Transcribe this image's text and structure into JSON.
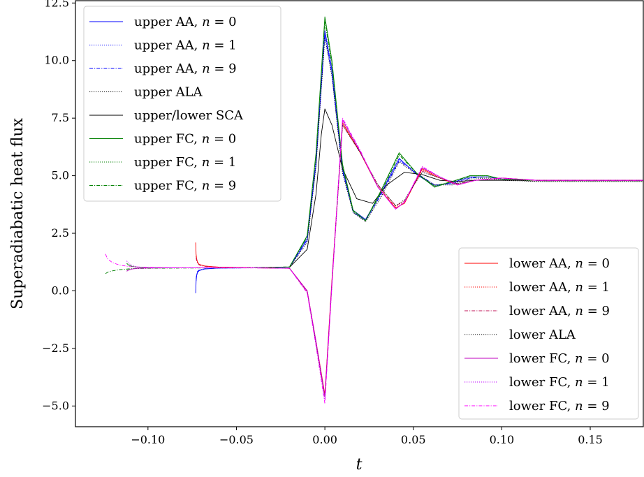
{
  "chart_data": {
    "type": "line",
    "xlabel": "t",
    "ylabel": "Superadiabatic heat flux",
    "xlim": [
      -0.141,
      0.18
    ],
    "ylim": [
      -5.9,
      12.6
    ],
    "xticks": [
      -0.1,
      -0.05,
      0.0,
      0.05,
      0.1,
      0.15
    ],
    "xtick_labels": [
      "−0.10",
      "−0.05",
      "0.00",
      "0.05",
      "0.10",
      "0.15"
    ],
    "yticks": [
      -5.0,
      -2.5,
      0.0,
      2.5,
      5.0,
      7.5,
      10.0,
      12.5
    ],
    "ytick_labels": [
      "−5.0",
      "−2.5",
      "0.0",
      "2.5",
      "5.0",
      "7.5",
      "10.0",
      "12.5"
    ],
    "grid": false,
    "legends": [
      {
        "placement": "upper left",
        "entries": [
          "upper AA, n = 0",
          "upper AA, n = 1",
          "upper AA, n = 9",
          "upper ALA",
          "upper/lower SCA",
          "upper FC, n = 0",
          "upper FC, n = 1",
          "upper FC, n = 9"
        ]
      },
      {
        "placement": "lower right",
        "entries": [
          "lower AA, n = 0",
          "lower AA, n = 1",
          "lower AA, n = 9",
          "lower ALA",
          "lower FC, n = 0",
          "lower FC, n = 1",
          "lower FC, n = 9"
        ]
      }
    ],
    "series": [
      {
        "name": "upper AA, n = 0",
        "legend": 0,
        "color": "#0000ff",
        "dash": "solid",
        "x": [
          -0.073,
          -0.0728,
          -0.0725,
          -0.072,
          -0.071,
          -0.068,
          -0.06,
          -0.04,
          -0.02,
          -0.01,
          -0.005,
          0.0,
          0.004,
          0.01,
          0.016,
          0.023,
          0.032,
          0.042,
          0.052,
          0.062,
          0.072,
          0.082,
          0.092,
          0.1,
          0.12,
          0.15,
          0.18
        ],
        "y": [
          -0.1,
          0.4,
          0.65,
          0.8,
          0.88,
          0.95,
          0.99,
          1.0,
          1.03,
          2.2,
          5.5,
          11.3,
          9.6,
          5.3,
          3.5,
          3.1,
          4.3,
          5.75,
          5.05,
          4.55,
          4.7,
          4.95,
          4.95,
          4.85,
          4.8,
          4.8,
          4.8
        ]
      },
      {
        "name": "upper AA, n = 1",
        "legend": 0,
        "color": "#0000ff",
        "dash": "dotted",
        "x": [
          -0.0728,
          -0.0725,
          -0.072,
          -0.071,
          -0.068,
          -0.06,
          -0.04,
          -0.02,
          -0.01,
          -0.005,
          0.0,
          0.004,
          0.01,
          0.016,
          0.023,
          0.032,
          0.042,
          0.052,
          0.062,
          0.072,
          0.082,
          0.092,
          0.1,
          0.12,
          0.15,
          0.18
        ],
        "y": [
          0.45,
          0.7,
          0.82,
          0.9,
          0.96,
          0.99,
          1.0,
          1.03,
          2.25,
          5.6,
          11.2,
          9.5,
          5.25,
          3.45,
          3.05,
          4.25,
          5.7,
          5.1,
          4.6,
          4.65,
          4.9,
          4.95,
          4.85,
          4.8,
          4.8,
          4.8
        ]
      },
      {
        "name": "upper AA, n = 9",
        "legend": 0,
        "color": "#0000ff",
        "dash": "dashdot",
        "x": [
          -0.0728,
          -0.0725,
          -0.072,
          -0.071,
          -0.068,
          -0.06,
          -0.04,
          -0.02,
          -0.01,
          -0.005,
          0.0,
          0.004,
          0.01,
          0.016,
          0.023,
          0.032,
          0.042,
          0.052,
          0.062,
          0.072,
          0.082,
          0.092,
          0.1,
          0.12,
          0.15,
          0.18
        ],
        "y": [
          0.5,
          0.72,
          0.84,
          0.91,
          0.96,
          0.99,
          1.0,
          1.03,
          2.3,
          5.6,
          11.1,
          9.4,
          5.2,
          3.4,
          3.05,
          4.2,
          5.65,
          5.1,
          4.6,
          4.65,
          4.9,
          4.95,
          4.85,
          4.8,
          4.8,
          4.8
        ]
      },
      {
        "name": "upper ALA",
        "legend": 0,
        "color": "#000000",
        "dash": "dotted",
        "x": [
          -0.02,
          -0.01,
          -0.005,
          0.0,
          0.004,
          0.01,
          0.016,
          0.023,
          0.032,
          0.042,
          0.052,
          0.062,
          0.072,
          0.082,
          0.092,
          0.1,
          0.12,
          0.15,
          0.18
        ],
        "y": [
          1.02,
          2.1,
          5.4,
          11.0,
          9.3,
          5.1,
          3.4,
          3.0,
          4.1,
          5.6,
          5.05,
          4.6,
          4.6,
          4.85,
          4.9,
          4.8,
          4.75,
          4.75,
          4.75
        ]
      },
      {
        "name": "upper/lower SCA",
        "legend": 0,
        "color": "#000000",
        "dash": "solid",
        "x": [
          -0.02,
          -0.01,
          -0.005,
          -0.002,
          0.0,
          0.004,
          0.01,
          0.018,
          0.027,
          0.035,
          0.045,
          0.055,
          0.065,
          0.075,
          0.085,
          0.1,
          0.12,
          0.15,
          0.18
        ],
        "y": [
          1.02,
          1.8,
          4.2,
          6.8,
          7.9,
          7.2,
          5.3,
          4.0,
          3.8,
          4.6,
          5.15,
          5.05,
          4.8,
          4.75,
          4.8,
          4.8,
          4.8,
          4.8,
          4.8
        ]
      },
      {
        "name": "upper FC, n = 0",
        "legend": 0,
        "color": "#008000",
        "dash": "solid",
        "x": [
          -0.112,
          -0.111,
          -0.109,
          -0.106,
          -0.1,
          -0.09,
          -0.07,
          -0.04,
          -0.02,
          -0.01,
          -0.005,
          0.0,
          0.004,
          0.01,
          0.016,
          0.023,
          0.032,
          0.042,
          0.052,
          0.062,
          0.072,
          0.082,
          0.092,
          0.1,
          0.12,
          0.15,
          0.18
        ],
        "y": [
          1.2,
          1.12,
          1.06,
          1.03,
          1.01,
          1.0,
          1.0,
          1.0,
          1.04,
          2.4,
          6.0,
          11.9,
          10.0,
          5.5,
          3.5,
          3.05,
          4.4,
          6.0,
          5.1,
          4.5,
          4.75,
          5.0,
          5.0,
          4.85,
          4.8,
          4.8,
          4.8
        ]
      },
      {
        "name": "upper FC, n = 1",
        "legend": 0,
        "color": "#008000",
        "dash": "dotted",
        "x": [
          -0.112,
          -0.111,
          -0.109,
          -0.106,
          -0.1,
          -0.09,
          -0.07,
          -0.04,
          -0.02,
          -0.01,
          -0.005,
          0.0,
          0.004,
          0.01,
          0.016,
          0.023,
          0.032,
          0.042,
          0.052,
          0.062,
          0.072,
          0.082,
          0.092,
          0.1,
          0.12,
          0.15,
          0.18
        ],
        "y": [
          0.9,
          0.93,
          0.96,
          0.98,
          0.99,
          1.0,
          1.0,
          1.0,
          1.04,
          2.35,
          5.9,
          11.8,
          9.9,
          5.45,
          3.45,
          3.05,
          4.35,
          5.95,
          5.1,
          4.55,
          4.75,
          5.0,
          5.0,
          4.85,
          4.8,
          4.8,
          4.8
        ]
      },
      {
        "name": "upper FC, n = 9",
        "legend": 0,
        "color": "#008000",
        "dash": "dashdot",
        "x": [
          -0.124,
          -0.123,
          -0.12,
          -0.116,
          -0.11,
          -0.1,
          -0.08,
          -0.05,
          -0.02,
          -0.01,
          -0.005,
          0.0,
          0.004,
          0.01,
          0.016,
          0.023,
          0.032,
          0.042,
          0.052,
          0.062,
          0.072,
          0.082,
          0.092,
          0.1,
          0.12,
          0.15,
          0.18
        ],
        "y": [
          0.75,
          0.8,
          0.87,
          0.92,
          0.96,
          0.98,
          0.99,
          1.0,
          1.04,
          2.35,
          5.9,
          11.7,
          9.8,
          5.4,
          3.45,
          3.05,
          4.3,
          5.9,
          5.1,
          4.55,
          4.75,
          4.95,
          4.95,
          4.85,
          4.8,
          4.8,
          4.8
        ]
      },
      {
        "name": "lower AA, n = 0",
        "legend": 1,
        "color": "#ff0000",
        "dash": "solid",
        "x": [
          -0.073,
          -0.0728,
          -0.0725,
          -0.072,
          -0.071,
          -0.068,
          -0.06,
          -0.04,
          -0.02,
          -0.01,
          -0.005,
          0.0,
          0.004,
          0.01,
          0.02,
          0.03,
          0.04,
          0.045,
          0.055,
          0.065,
          0.075,
          0.085,
          0.1,
          0.12,
          0.15,
          0.18
        ],
        "y": [
          2.1,
          1.6,
          1.4,
          1.25,
          1.15,
          1.08,
          1.03,
          1.0,
          0.98,
          0.0,
          -2.2,
          -4.5,
          0.5,
          7.3,
          6.0,
          4.5,
          3.6,
          3.8,
          5.3,
          4.9,
          4.6,
          4.8,
          4.9,
          4.8,
          4.8,
          4.8
        ]
      },
      {
        "name": "lower AA, n = 1",
        "legend": 1,
        "color": "#ff0000",
        "dash": "dotted",
        "x": [
          -0.0728,
          -0.0725,
          -0.072,
          -0.071,
          -0.068,
          -0.06,
          -0.04,
          -0.02,
          -0.01,
          -0.005,
          0.0,
          0.004,
          0.01,
          0.02,
          0.03,
          0.04,
          0.045,
          0.055,
          0.065,
          0.075,
          0.085,
          0.1,
          0.12,
          0.15,
          0.18
        ],
        "y": [
          1.5,
          1.35,
          1.22,
          1.13,
          1.07,
          1.03,
          1.0,
          0.98,
          0.0,
          -2.25,
          -4.55,
          0.4,
          7.25,
          6.0,
          4.55,
          3.65,
          3.85,
          5.25,
          4.9,
          4.6,
          4.8,
          4.9,
          4.8,
          4.8,
          4.8
        ]
      },
      {
        "name": "lower AA, n = 9",
        "legend": 1,
        "color": "#c2185b",
        "dash": "dashdot",
        "x": [
          -0.0728,
          -0.0725,
          -0.072,
          -0.071,
          -0.068,
          -0.06,
          -0.04,
          -0.02,
          -0.01,
          -0.005,
          0.0,
          0.004,
          0.01,
          0.02,
          0.03,
          0.04,
          0.045,
          0.055,
          0.065,
          0.075,
          0.085,
          0.1,
          0.12,
          0.15,
          0.18
        ],
        "y": [
          1.45,
          1.3,
          1.2,
          1.12,
          1.06,
          1.03,
          1.0,
          0.98,
          -0.05,
          -2.3,
          -4.6,
          0.3,
          7.2,
          6.0,
          4.6,
          3.7,
          3.9,
          5.2,
          4.9,
          4.65,
          4.8,
          4.9,
          4.8,
          4.8,
          4.8
        ]
      },
      {
        "name": "lower ALA",
        "legend": 1,
        "color": "#000000",
        "dash": "dotted",
        "x": [
          -0.02,
          -0.01,
          -0.005,
          0.0,
          0.004,
          0.01,
          0.02,
          0.03,
          0.04,
          0.045,
          0.055,
          0.065,
          0.075,
          0.085,
          0.1,
          0.12,
          0.15,
          0.18
        ],
        "y": [
          0.98,
          0.0,
          -2.3,
          -4.6,
          0.3,
          7.2,
          6.0,
          4.6,
          3.7,
          3.95,
          5.15,
          4.9,
          4.65,
          4.8,
          4.85,
          4.75,
          4.75,
          4.75
        ]
      },
      {
        "name": "lower FC, n = 0",
        "legend": 1,
        "color": "#bf00bf",
        "dash": "solid",
        "x": [
          -0.112,
          -0.111,
          -0.109,
          -0.106,
          -0.1,
          -0.09,
          -0.07,
          -0.04,
          -0.02,
          -0.01,
          -0.005,
          0.0,
          0.004,
          0.01,
          0.02,
          0.03,
          0.04,
          0.045,
          0.055,
          0.065,
          0.075,
          0.085,
          0.1,
          0.12,
          0.15,
          0.18
        ],
        "y": [
          0.85,
          0.9,
          0.95,
          0.98,
          0.99,
          1.0,
          1.0,
          1.0,
          0.98,
          0.0,
          -2.2,
          -4.6,
          0.4,
          7.4,
          6.05,
          4.5,
          3.55,
          3.85,
          5.35,
          4.95,
          4.6,
          4.8,
          4.9,
          4.8,
          4.8,
          4.8
        ]
      },
      {
        "name": "lower FC, n = 1",
        "legend": 1,
        "color": "#bf00ff",
        "dash": "dotted",
        "x": [
          -0.112,
          -0.111,
          -0.109,
          -0.106,
          -0.1,
          -0.09,
          -0.07,
          -0.04,
          -0.02,
          -0.01,
          -0.005,
          0.0,
          0.004,
          0.01,
          0.02,
          0.03,
          0.04,
          0.045,
          0.055,
          0.065,
          0.075,
          0.085,
          0.1,
          0.12,
          0.15,
          0.18
        ],
        "y": [
          1.3,
          1.2,
          1.1,
          1.04,
          1.01,
          1.0,
          1.0,
          1.0,
          0.98,
          -0.05,
          -2.3,
          -4.75,
          0.3,
          7.45,
          6.05,
          4.5,
          3.55,
          3.85,
          5.35,
          4.95,
          4.6,
          4.8,
          4.9,
          4.8,
          4.8,
          4.8
        ]
      },
      {
        "name": "lower FC, n = 9",
        "legend": 1,
        "color": "#ff00ff",
        "dash": "dashdot",
        "x": [
          -0.124,
          -0.123,
          -0.12,
          -0.116,
          -0.11,
          -0.1,
          -0.08,
          -0.05,
          -0.02,
          -0.01,
          -0.005,
          0.0,
          0.004,
          0.01,
          0.02,
          0.03,
          0.04,
          0.045,
          0.055,
          0.065,
          0.075,
          0.085,
          0.1,
          0.12,
          0.15,
          0.18
        ],
        "y": [
          1.6,
          1.4,
          1.22,
          1.12,
          1.05,
          1.02,
          1.0,
          1.0,
          0.98,
          -0.1,
          -2.4,
          -4.9,
          0.2,
          7.5,
          6.1,
          4.5,
          3.55,
          3.85,
          5.4,
          4.95,
          4.6,
          4.8,
          4.9,
          4.8,
          4.8,
          4.8
        ]
      }
    ]
  }
}
